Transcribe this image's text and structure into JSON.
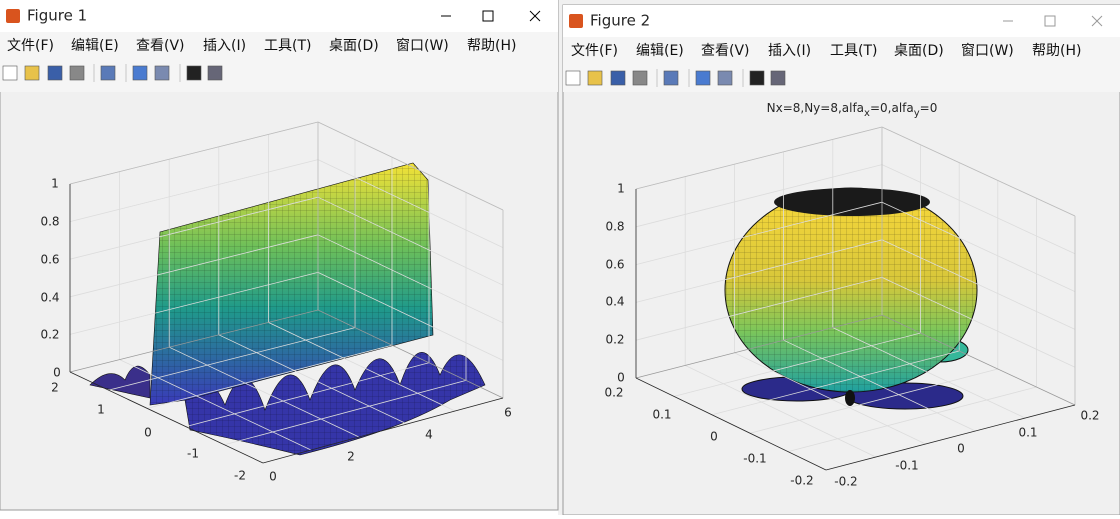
{
  "windows": [
    {
      "title": "Figure 1",
      "menu": [
        "文件(F)",
        "编辑(E)",
        "查看(V)",
        "插入(I)",
        "工具(T)",
        "桌面(D)",
        "窗口(W)",
        "帮助(H)"
      ],
      "axes": {
        "xticks": [
          "0",
          "2",
          "4",
          "6"
        ],
        "yticks": [
          "-2",
          "-1",
          "0",
          "1",
          "2"
        ],
        "zticks": [
          "0",
          "0.2",
          "0.4",
          "0.6",
          "0.8",
          "1"
        ]
      }
    },
    {
      "title": "Figure 2",
      "menu": [
        "文件(F)",
        "编辑(E)",
        "查看(V)",
        "插入(I)",
        "工具(T)",
        "桌面(D)",
        "窗口(W)",
        "帮助(H)"
      ],
      "axes": {
        "title": [
          "Nx=8,Ny=8,alfa",
          "x",
          "=0,alfa",
          "y",
          "=0"
        ],
        "xticks": [
          "-0.2",
          "-0.1",
          "0",
          "0.1",
          "0.2"
        ],
        "yticks": [
          "-0.2",
          "-0.1",
          "0",
          "0.1",
          "0.2"
        ],
        "zticks": [
          "0",
          "0.2",
          "0.4",
          "0.6",
          "0.8",
          "1"
        ]
      }
    }
  ]
}
